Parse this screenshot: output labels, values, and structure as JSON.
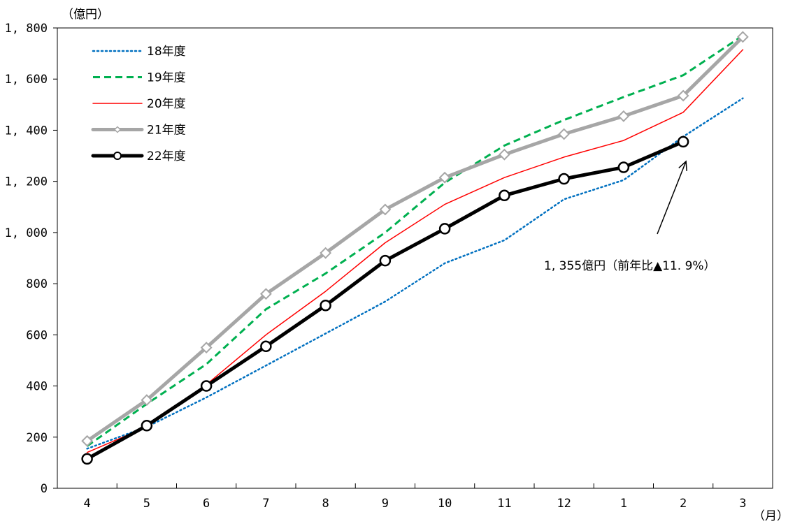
{
  "chart_data": {
    "type": "line",
    "y_unit_label": "（億円）",
    "x_unit_label": "（月）",
    "categories": [
      "4",
      "5",
      "6",
      "7",
      "8",
      "9",
      "10",
      "11",
      "12",
      "1",
      "2",
      "3"
    ],
    "ylim": [
      0,
      1800
    ],
    "yticks": [
      0,
      200,
      400,
      600,
      800,
      1000,
      1200,
      1400,
      1600,
      1800
    ],
    "ytick_labels": [
      "0",
      "200",
      "400",
      "600",
      "800",
      "1, 000",
      "1, 200",
      "1, 400",
      "1, 600",
      "1, 800"
    ],
    "grid": false,
    "legend_position": "top-left",
    "series": [
      {
        "name": "18年度",
        "color": "#0070C0",
        "style": "dotted",
        "marker": "none",
        "values": [
          155,
          240,
          355,
          480,
          605,
          730,
          880,
          970,
          1130,
          1205,
          1375,
          1525
        ]
      },
      {
        "name": "19年度",
        "color": "#00B050",
        "style": "dashed",
        "marker": "none",
        "values": [
          165,
          330,
          485,
          700,
          840,
          1000,
          1195,
          1340,
          1440,
          1530,
          1615,
          1770
        ]
      },
      {
        "name": "20年度",
        "color": "#FF0000",
        "style": "solid",
        "marker": "none",
        "values": [
          140,
          240,
          405,
          600,
          770,
          960,
          1110,
          1215,
          1295,
          1360,
          1470,
          1715
        ]
      },
      {
        "name": "21年度",
        "color": "#A6A6A6",
        "style": "solid-thick",
        "marker": "diamond",
        "values": [
          185,
          345,
          550,
          760,
          920,
          1090,
          1215,
          1305,
          1385,
          1455,
          1535,
          1765
        ]
      },
      {
        "name": "22年度",
        "color": "#000000",
        "style": "solid-thick",
        "marker": "circle",
        "values": [
          115,
          245,
          400,
          555,
          715,
          890,
          1015,
          1145,
          1210,
          1255,
          1355,
          null
        ]
      }
    ],
    "annotations": [
      {
        "text": "1, 355億円（前年比▲11. 9%）",
        "series": "22年度",
        "category": "2",
        "value": 1355
      }
    ]
  }
}
